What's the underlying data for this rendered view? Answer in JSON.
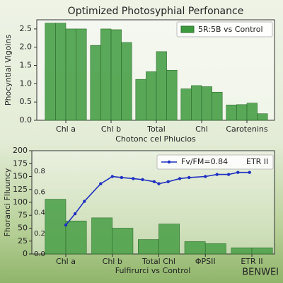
{
  "chart_data": [
    {
      "type": "bar",
      "title": "Optimized Photosyphial Perfonance",
      "xlabel": "Chotonc cel Phiucios",
      "ylabel": "Phocyntial Vigoins",
      "categories": [
        "Chl a",
        "Chl b",
        "Total",
        "Chl",
        "Carotenins"
      ],
      "series": [
        {
          "name": "5R:5B vs Control",
          "color": "#3e9a3e",
          "values": [
            [
              2.66,
              2.66,
              2.5,
              2.5
            ],
            [
              2.05,
              2.5,
              2.48,
              2.13
            ],
            [
              1.12,
              1.33,
              1.88,
              1.37
            ],
            [
              0.86,
              0.95,
              0.92,
              0.77
            ],
            [
              0.42,
              0.43,
              0.47,
              0.18
            ]
          ]
        }
      ],
      "ylim": [
        0,
        2.75
      ],
      "yticks": [
        {
          "value": 0,
          "label": "0.0"
        },
        {
          "value": 0.5,
          "label": "0.5"
        },
        {
          "value": 1,
          "label": "1.0"
        },
        {
          "value": 1.5,
          "label": "1.5"
        },
        {
          "value": 2,
          "label": "2.0"
        },
        {
          "value": 2.5,
          "label": "2.5"
        }
      ],
      "legend": "upper right"
    },
    {
      "type": "combo",
      "xlabel": "Fulfirurci vs Control",
      "ylabel": "Fhoranci Flluuncy",
      "categories": [
        "Chl a",
        "Chl b",
        "Total Chl",
        "ΦPSII",
        "ETR II"
      ],
      "series": [
        {
          "type": "bar",
          "color": "#3e9a3e",
          "axis": "y2",
          "values": [
            [
              0.53,
              0.32
            ],
            [
              0.35,
              0.25
            ],
            [
              0.14,
              0.29
            ],
            [
              0.12,
              0.1
            ],
            [
              0.06,
              0.06
            ]
          ]
        },
        {
          "type": "line",
          "name": "Fv/FM=0.84",
          "color": "#1f2fc0",
          "axis": "y2",
          "x": [
            0,
            0.2,
            0.4,
            0.75,
            1,
            1.2,
            1.45,
            1.65,
            1.9,
            2,
            2.2,
            2.45,
            2.65,
            3,
            3.25,
            3.5,
            3.7,
            3.95
          ],
          "values": [
            0.28,
            0.39,
            0.51,
            0.68,
            0.75,
            0.74,
            0.73,
            0.72,
            0.7,
            0.68,
            0.7,
            0.73,
            0.74,
            0.75,
            0.77,
            0.77,
            0.79,
            0.79
          ]
        }
      ],
      "annotation": "ETR II",
      "ylim": [
        0,
        200
      ],
      "yticks": [
        0,
        25,
        50,
        75,
        100,
        125,
        150,
        175,
        200
      ],
      "y2lim": [
        0,
        1
      ],
      "y2ticks": [
        {
          "value": 0,
          "label": "0.0"
        },
        {
          "value": 0.2,
          "label": "0.2"
        },
        {
          "value": 0.4,
          "label": "0.4"
        },
        {
          "value": 0.6,
          "label": "0.6"
        },
        {
          "value": 0.8,
          "label": "0.8"
        }
      ],
      "legend": "upper right"
    }
  ],
  "watermark": "BENWEI"
}
